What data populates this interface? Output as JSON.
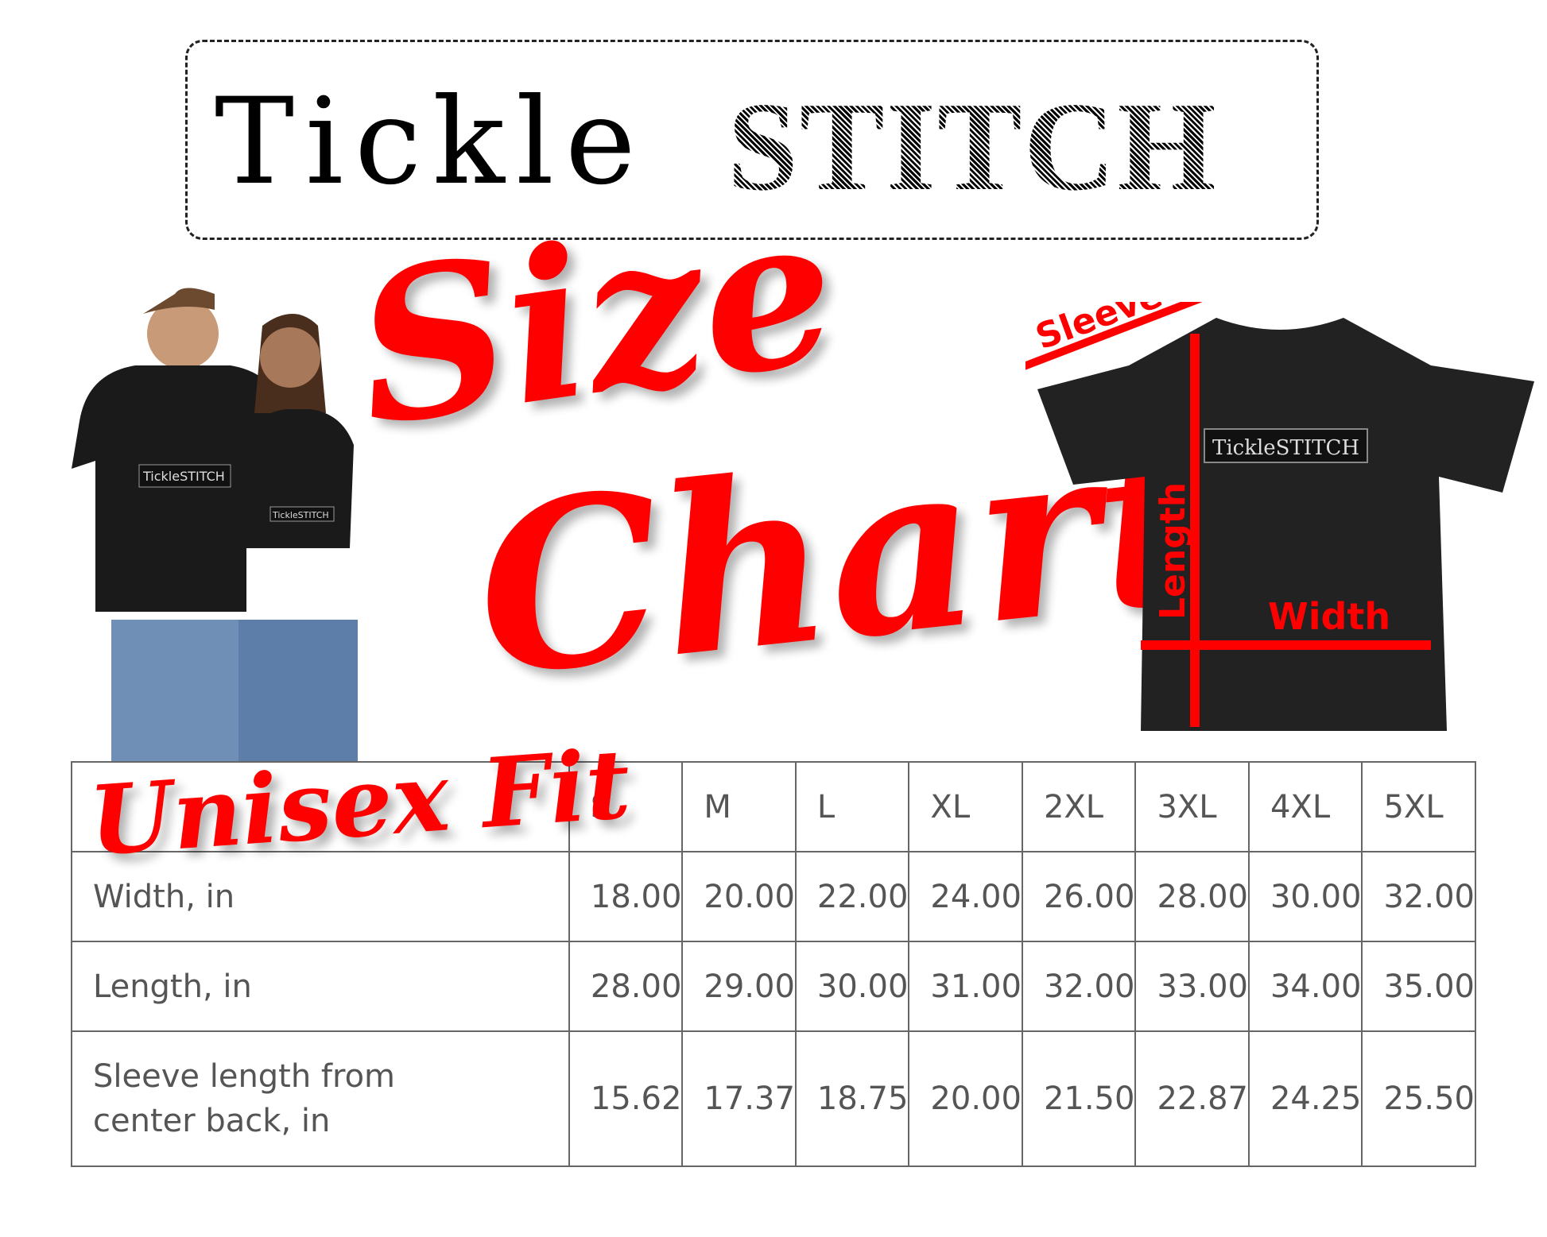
{
  "logo": {
    "part1": "Tickle",
    "part2": "STITCH"
  },
  "title": {
    "word1": "Size",
    "word2": "Chart"
  },
  "shirt_print": "TickleSTITCH",
  "diagram": {
    "sleeve": "Sleeve",
    "length": "Length",
    "width": "Width"
  },
  "table": {
    "corner": "Unisex Fit",
    "sizes": [
      "S",
      "M",
      "L",
      "XL",
      "2XL",
      "3XL",
      "4XL",
      "5XL"
    ],
    "rows": [
      {
        "label": "Width, in",
        "values": [
          "18.00",
          "20.00",
          "22.00",
          "24.00",
          "26.00",
          "28.00",
          "30.00",
          "32.00"
        ]
      },
      {
        "label": "Length, in",
        "values": [
          "28.00",
          "29.00",
          "30.00",
          "31.00",
          "32.00",
          "33.00",
          "34.00",
          "35.00"
        ]
      },
      {
        "label": "Sleeve length from center back, in",
        "values": [
          "15.62",
          "17.37",
          "18.75",
          "20.00",
          "21.50",
          "22.87",
          "24.25",
          "25.50"
        ]
      }
    ]
  },
  "colors": {
    "accent": "#ff0000",
    "shirt": "#222222"
  }
}
